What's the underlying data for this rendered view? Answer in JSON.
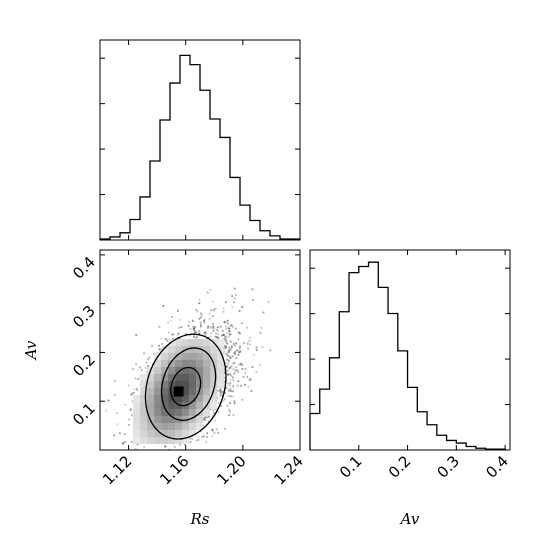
{
  "chart_data": {
    "type": "corner",
    "parameters": [
      "Rs",
      "Av"
    ],
    "panels": [
      {
        "panel": "hist-Rs",
        "type": "histogram",
        "xlim": [
          1.1,
          1.24
        ],
        "bin_edges": [
          1.1,
          1.107,
          1.114,
          1.121,
          1.128,
          1.135,
          1.142,
          1.149,
          1.156,
          1.163,
          1.17,
          1.177,
          1.184,
          1.191,
          1.198,
          1.205,
          1.212,
          1.219,
          1.226,
          1.233,
          1.24
        ],
        "counts": [
          1,
          3,
          7,
          20,
          42,
          77,
          117,
          153,
          180,
          171,
          146,
          118,
          100,
          61,
          34,
          19,
          9,
          4,
          1,
          1
        ],
        "ylim": [
          0,
          195
        ],
        "xticks": [
          1.12,
          1.16,
          1.2,
          1.24
        ],
        "show_x_tick_labels": false,
        "show_y_tick_labels": false
      },
      {
        "panel": "hist-Av",
        "type": "histogram",
        "xlim": [
          0,
          0.41
        ],
        "bin_edges": [
          0,
          0.02,
          0.04,
          0.06,
          0.08,
          0.1,
          0.12,
          0.14,
          0.16,
          0.18,
          0.2,
          0.22,
          0.24,
          0.26,
          0.28,
          0.3,
          0.32,
          0.34,
          0.36,
          0.38,
          0.4
        ],
        "counts": [
          42,
          70,
          106,
          159,
          204,
          211,
          216,
          187,
          157,
          114,
          72,
          44,
          29,
          17,
          11,
          8,
          4,
          2,
          1,
          1
        ],
        "ylim": [
          0,
          230
        ],
        "xticks": [
          0.1,
          0.2,
          0.3,
          0.4
        ],
        "xtick_labels": [
          "0.1",
          "0.2",
          "0.3",
          "0.4"
        ],
        "xlabel": "Av"
      },
      {
        "panel": "joint-Rs-Av",
        "type": "scatter",
        "xlim": [
          1.1,
          1.24
        ],
        "ylim": [
          0,
          0.41
        ],
        "xticks": [
          1.12,
          1.16,
          1.2,
          1.24
        ],
        "xtick_labels": [
          "1.12",
          "1.16",
          "1.20",
          "1.24"
        ],
        "yticks": [
          0.1,
          0.2,
          0.3,
          0.4
        ],
        "ytick_labels": [
          "0.1",
          "0.2",
          "0.3",
          "0.4"
        ],
        "xlabel": "Rs",
        "ylabel": "Av",
        "correlation": 0.45,
        "density_peak": [
          1.155,
          0.12
        ],
        "contours": [
          {
            "center": [
              1.16,
              0.13
            ],
            "semi_axes": [
              0.027,
              0.11
            ],
            "angle": 18
          },
          {
            "center": [
              1.162,
              0.135
            ],
            "semi_axes": [
              0.018,
              0.076
            ],
            "angle": 18
          },
          {
            "center": [
              1.16,
              0.13
            ],
            "semi_axes": [
              0.01,
              0.04
            ],
            "angle": 18
          }
        ]
      }
    ]
  }
}
